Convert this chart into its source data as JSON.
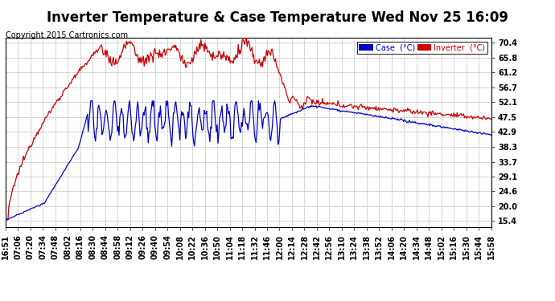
{
  "title": "Inverter Temperature & Case Temperature Wed Nov 25 16:09",
  "copyright": "Copyright 2015 Cartronics.com",
  "yticks": [
    15.4,
    20.0,
    24.6,
    29.1,
    33.7,
    38.3,
    42.9,
    47.5,
    52.1,
    56.7,
    61.2,
    65.8,
    70.4
  ],
  "ylim": [
    13.5,
    72.0
  ],
  "xtick_labels": [
    "16:51",
    "07:06",
    "07:20",
    "07:34",
    "07:48",
    "08:02",
    "08:16",
    "08:30",
    "08:44",
    "08:58",
    "09:12",
    "09:26",
    "09:40",
    "09:54",
    "10:08",
    "10:22",
    "10:36",
    "10:50",
    "11:04",
    "11:18",
    "11:32",
    "11:46",
    "12:00",
    "12:14",
    "12:28",
    "12:42",
    "12:56",
    "13:10",
    "13:24",
    "13:38",
    "13:52",
    "14:06",
    "14:20",
    "14:34",
    "14:48",
    "15:02",
    "15:16",
    "15:30",
    "15:44",
    "15:58"
  ],
  "legend_case_color": "#0000cc",
  "legend_inverter_color": "#cc0000",
  "legend_case_label": "Case  (°C)",
  "legend_inverter_label": "Inverter  (°C)",
  "bg_color": "#ffffff",
  "plot_bg_color": "#ffffff",
  "grid_color": "#bbbbbb",
  "title_fontsize": 12,
  "tick_fontsize": 7,
  "copyright_fontsize": 7
}
